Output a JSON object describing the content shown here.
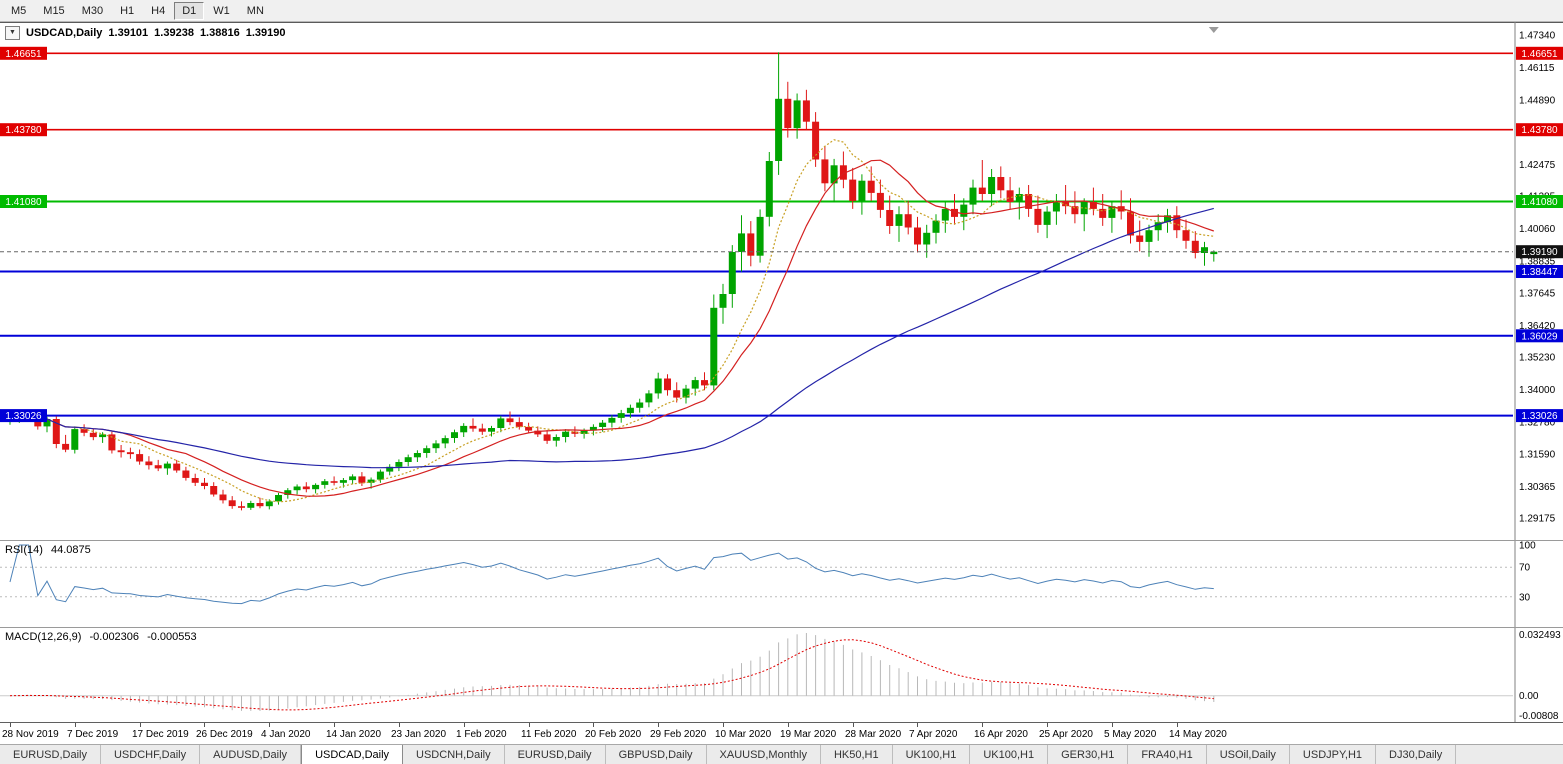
{
  "toolbar": {
    "periods": [
      "M5",
      "M15",
      "M30",
      "H1",
      "H4",
      "D1",
      "W1",
      "MN"
    ],
    "active": "D1"
  },
  "icons": {
    "collapse": "▼"
  },
  "chart_data": {
    "type": "candlestick",
    "title": {
      "symbol": "USDCAD,Daily",
      "open": "1.39101",
      "high": "1.39238",
      "low": "1.38816",
      "close": "1.39190"
    },
    "current_price": 1.3919,
    "colors": {
      "bull": "#00A400",
      "bear": "#DF1616"
    },
    "price_axis": {
      "min": 1.29175,
      "max": 1.4734,
      "ticks": [
        1.4734,
        1.46115,
        1.4489,
        1.42475,
        1.41285,
        1.4006,
        1.38835,
        1.37645,
        1.3642,
        1.3523,
        1.34,
        1.3278,
        1.3159,
        1.30365,
        1.29175
      ]
    },
    "horizontal_lines": [
      {
        "price": 1.46651,
        "color": "#E00000",
        "width": 1.6,
        "left_tag": true
      },
      {
        "price": 1.4378,
        "color": "#E00000",
        "width": 1.6,
        "left_tag": true
      },
      {
        "price": 1.4108,
        "color": "#00BB00",
        "width": 2,
        "left_tag": true
      },
      {
        "price": 1.38447,
        "color": "#0000D8",
        "width": 2,
        "left_tag": false
      },
      {
        "price": 1.36029,
        "color": "#0000D8",
        "width": 2,
        "left_tag": false
      },
      {
        "price": 1.33026,
        "color": "#0000D8",
        "width": 2,
        "left_tag": true
      }
    ],
    "x_axis_labels": [
      "28 Nov 2019",
      "7 Dec 2019",
      "17 Dec 2019",
      "26 Dec 2019",
      "4 Jan 2020",
      "14 Jan 2020",
      "23 Jan 2020",
      "1 Feb 2020",
      "11 Feb 2020",
      "20 Feb 2020",
      "29 Feb 2020",
      "10 Mar 2020",
      "19 Mar 2020",
      "28 Mar 2020",
      "7 Apr 2020",
      "16 Apr 2020",
      "25 Apr 2020",
      "5 May 2020",
      "14 May 2020"
    ],
    "ohlc": [
      [
        1.328,
        1.3302,
        1.3268,
        1.3288
      ],
      [
        1.3288,
        1.3312,
        1.3275,
        1.33
      ],
      [
        1.33,
        1.3322,
        1.3285,
        1.331
      ],
      [
        1.331,
        1.332,
        1.325,
        1.3262
      ],
      [
        1.3262,
        1.3298,
        1.324,
        1.329
      ],
      [
        1.329,
        1.33,
        1.318,
        1.3196
      ],
      [
        1.3196,
        1.323,
        1.3165,
        1.3174
      ],
      [
        1.3174,
        1.3262,
        1.316,
        1.3252
      ],
      [
        1.3252,
        1.327,
        1.3225,
        1.3238
      ],
      [
        1.3238,
        1.3252,
        1.321,
        1.3222
      ],
      [
        1.3222,
        1.324,
        1.32,
        1.3232
      ],
      [
        1.3232,
        1.3242,
        1.316,
        1.3172
      ],
      [
        1.3172,
        1.3192,
        1.3145,
        1.3165
      ],
      [
        1.3165,
        1.3182,
        1.314,
        1.3158
      ],
      [
        1.3158,
        1.3175,
        1.3118,
        1.313
      ],
      [
        1.313,
        1.315,
        1.31,
        1.3116
      ],
      [
        1.3116,
        1.3136,
        1.3094,
        1.3104
      ],
      [
        1.3104,
        1.313,
        1.308,
        1.3122
      ],
      [
        1.3122,
        1.3136,
        1.3088,
        1.3096
      ],
      [
        1.3096,
        1.311,
        1.3058,
        1.3068
      ],
      [
        1.3068,
        1.3084,
        1.3038,
        1.305
      ],
      [
        1.305,
        1.3068,
        1.3026,
        1.3038
      ],
      [
        1.3038,
        1.3052,
        1.2998,
        1.3006
      ],
      [
        1.3006,
        1.3024,
        1.2972,
        1.2984
      ],
      [
        1.2984,
        1.3,
        1.2952,
        1.2962
      ],
      [
        1.2962,
        1.298,
        1.2946,
        1.2956
      ],
      [
        1.2956,
        1.2982,
        1.2948,
        1.2974
      ],
      [
        1.2974,
        1.2994,
        1.2954,
        1.2962
      ],
      [
        1.2962,
        1.2988,
        1.295,
        1.298
      ],
      [
        1.298,
        1.3012,
        1.2968,
        1.3004
      ],
      [
        1.3004,
        1.303,
        1.299,
        1.3022
      ],
      [
        1.3022,
        1.3044,
        1.3006,
        1.3036
      ],
      [
        1.3036,
        1.3052,
        1.3014,
        1.3026
      ],
      [
        1.3026,
        1.3048,
        1.301,
        1.3042
      ],
      [
        1.3042,
        1.3064,
        1.3028,
        1.3056
      ],
      [
        1.3056,
        1.3074,
        1.304,
        1.305
      ],
      [
        1.305,
        1.3068,
        1.3032,
        1.306
      ],
      [
        1.306,
        1.3082,
        1.3044,
        1.3074
      ],
      [
        1.3074,
        1.309,
        1.3038,
        1.305
      ],
      [
        1.305,
        1.307,
        1.3028,
        1.3062
      ],
      [
        1.3062,
        1.31,
        1.305,
        1.3092
      ],
      [
        1.3092,
        1.312,
        1.3078,
        1.311
      ],
      [
        1.311,
        1.3138,
        1.3094,
        1.3128
      ],
      [
        1.3128,
        1.3156,
        1.3112,
        1.3146
      ],
      [
        1.3146,
        1.3172,
        1.3128,
        1.3162
      ],
      [
        1.3162,
        1.319,
        1.3144,
        1.318
      ],
      [
        1.318,
        1.321,
        1.3162,
        1.3198
      ],
      [
        1.3198,
        1.3228,
        1.318,
        1.3218
      ],
      [
        1.3218,
        1.325,
        1.32,
        1.324
      ],
      [
        1.324,
        1.3274,
        1.3222,
        1.3264
      ],
      [
        1.3264,
        1.3292,
        1.3242,
        1.3254
      ],
      [
        1.3254,
        1.3272,
        1.323,
        1.3242
      ],
      [
        1.3242,
        1.3264,
        1.3224,
        1.3256
      ],
      [
        1.3256,
        1.3302,
        1.324,
        1.3292
      ],
      [
        1.3292,
        1.3318,
        1.3266,
        1.3278
      ],
      [
        1.3278,
        1.3296,
        1.325,
        1.326
      ],
      [
        1.326,
        1.3276,
        1.3236,
        1.3246
      ],
      [
        1.3246,
        1.3262,
        1.3222,
        1.3232
      ],
      [
        1.3232,
        1.3248,
        1.3196,
        1.3208
      ],
      [
        1.3208,
        1.3232,
        1.3186,
        1.3222
      ],
      [
        1.3222,
        1.3252,
        1.3202,
        1.3242
      ],
      [
        1.3242,
        1.3262,
        1.3222,
        1.3234
      ],
      [
        1.3234,
        1.3254,
        1.3216,
        1.3246
      ],
      [
        1.3246,
        1.327,
        1.3228,
        1.326
      ],
      [
        1.326,
        1.3286,
        1.3242,
        1.3276
      ],
      [
        1.3276,
        1.3304,
        1.3258,
        1.3294
      ],
      [
        1.3294,
        1.3324,
        1.3276,
        1.3312
      ],
      [
        1.3312,
        1.3344,
        1.3294,
        1.3332
      ],
      [
        1.3332,
        1.3366,
        1.3314,
        1.3352
      ],
      [
        1.3352,
        1.3398,
        1.3334,
        1.3386
      ],
      [
        1.3386,
        1.3464,
        1.3366,
        1.3442
      ],
      [
        1.3442,
        1.3458,
        1.3378,
        1.3398
      ],
      [
        1.3398,
        1.3428,
        1.3352,
        1.337
      ],
      [
        1.337,
        1.3418,
        1.3348,
        1.3404
      ],
      [
        1.3404,
        1.3448,
        1.3378,
        1.3436
      ],
      [
        1.3436,
        1.3466,
        1.3398,
        1.3416
      ],
      [
        1.3416,
        1.3758,
        1.3398,
        1.3708
      ],
      [
        1.3708,
        1.3798,
        1.3648,
        1.376
      ],
      [
        1.376,
        1.3944,
        1.3708,
        1.3918
      ],
      [
        1.3918,
        1.4056,
        1.3844,
        1.3988
      ],
      [
        1.3988,
        1.4034,
        1.3864,
        1.3904
      ],
      [
        1.3904,
        1.4078,
        1.3878,
        1.405
      ],
      [
        1.405,
        1.4294,
        1.4014,
        1.426
      ],
      [
        1.426,
        1.4669,
        1.4208,
        1.4494
      ],
      [
        1.4494,
        1.4558,
        1.4348,
        1.4384
      ],
      [
        1.4384,
        1.4514,
        1.4344,
        1.4488
      ],
      [
        1.4488,
        1.4528,
        1.4378,
        1.4408
      ],
      [
        1.4408,
        1.4444,
        1.4238,
        1.4266
      ],
      [
        1.4266,
        1.4316,
        1.4146,
        1.4176
      ],
      [
        1.4176,
        1.4268,
        1.4104,
        1.4244
      ],
      [
        1.4244,
        1.4296,
        1.4158,
        1.419
      ],
      [
        1.419,
        1.4234,
        1.408,
        1.411
      ],
      [
        1.411,
        1.421,
        1.4058,
        1.4186
      ],
      [
        1.4186,
        1.424,
        1.411,
        1.414
      ],
      [
        1.414,
        1.419,
        1.4046,
        1.4076
      ],
      [
        1.4076,
        1.413,
        1.3986,
        1.4016
      ],
      [
        1.4016,
        1.409,
        1.3956,
        1.406
      ],
      [
        1.406,
        1.411,
        1.3984,
        1.401
      ],
      [
        1.401,
        1.405,
        1.3916,
        1.3946
      ],
      [
        1.3946,
        1.402,
        1.3896,
        1.399
      ],
      [
        1.399,
        1.406,
        1.395,
        1.4036
      ],
      [
        1.4036,
        1.4106,
        1.399,
        1.408
      ],
      [
        1.408,
        1.4136,
        1.402,
        1.405
      ],
      [
        1.405,
        1.412,
        1.4,
        1.4096
      ],
      [
        1.4096,
        1.419,
        1.406,
        1.416
      ],
      [
        1.416,
        1.4264,
        1.411,
        1.4136
      ],
      [
        1.4136,
        1.423,
        1.409,
        1.42
      ],
      [
        1.42,
        1.424,
        1.412,
        1.415
      ],
      [
        1.415,
        1.42,
        1.408,
        1.4106
      ],
      [
        1.4106,
        1.416,
        1.404,
        1.4136
      ],
      [
        1.4136,
        1.417,
        1.405,
        1.408
      ],
      [
        1.408,
        1.413,
        1.399,
        1.402
      ],
      [
        1.402,
        1.409,
        1.397,
        1.407
      ],
      [
        1.407,
        1.4136,
        1.402,
        1.411
      ],
      [
        1.411,
        1.417,
        1.406,
        1.409
      ],
      [
        1.409,
        1.4146,
        1.4026,
        1.406
      ],
      [
        1.406,
        1.412,
        1.3996,
        1.4106
      ],
      [
        1.4106,
        1.416,
        1.4056,
        1.408
      ],
      [
        1.408,
        1.4136,
        1.4016,
        1.4046
      ],
      [
        1.4046,
        1.411,
        1.399,
        1.409
      ],
      [
        1.409,
        1.415,
        1.404,
        1.407
      ],
      [
        1.407,
        1.412,
        1.395,
        1.398
      ],
      [
        1.398,
        1.4036,
        1.392,
        1.3956
      ],
      [
        1.3956,
        1.402,
        1.39,
        1.4
      ],
      [
        1.4,
        1.406,
        1.396,
        1.403
      ],
      [
        1.403,
        1.408,
        1.399,
        1.4056
      ],
      [
        1.4056,
        1.409,
        1.397,
        1.4
      ],
      [
        1.4,
        1.404,
        1.393,
        1.396
      ],
      [
        1.396,
        1.3996,
        1.3894,
        1.3914
      ],
      [
        1.3914,
        1.3956,
        1.3866,
        1.3936
      ],
      [
        1.39101,
        1.39238,
        1.38816,
        1.3919
      ]
    ],
    "indicators": {
      "moving_averages": [
        {
          "name": "fast-ma",
          "period": 8,
          "color": "#C8A024",
          "dash": "2,2"
        },
        {
          "name": "mid-ma",
          "period": 13,
          "color": "#D42020",
          "dash": ""
        },
        {
          "name": "slow-ma",
          "period": 55,
          "color": "#2424A8",
          "dash": ""
        }
      ],
      "rsi": {
        "name": "RSI(14)",
        "period": 14,
        "value": "44.0875",
        "levels": [
          100,
          70,
          30
        ],
        "color": "#4D82B8"
      },
      "macd": {
        "name": "MACD(12,26,9)",
        "fast": 12,
        "slow": 26,
        "signal": 9,
        "value_macd": "-0.002306",
        "value_signal": "-0.000553",
        "axis_labels": {
          "top": "0.032493",
          "zero": "0.00",
          "bottom": "-0.00808"
        },
        "histogram_color": "#B8B8B8",
        "signal_color": "#E00000"
      }
    }
  },
  "tabs": {
    "items": [
      "EURUSD,Daily",
      "USDCHF,Daily",
      "AUDUSD,Daily",
      "USDCAD,Daily",
      "USDCNH,Daily",
      "EURUSD,Daily",
      "GBPUSD,Daily",
      "XAUUSD,Monthly",
      "HK50,H1",
      "UK100,H1",
      "UK100,H1",
      "GER30,H1",
      "FRA40,H1",
      "USOil,Daily",
      "USDJPY,H1",
      "DJ30,Daily"
    ],
    "active_index": 3
  }
}
